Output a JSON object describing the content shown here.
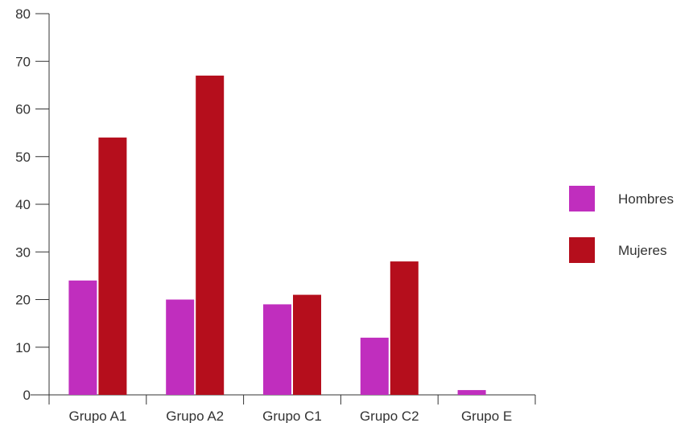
{
  "chart_data": {
    "type": "bar",
    "title": "",
    "xlabel": "",
    "ylabel": "",
    "categories": [
      "Grupo A1",
      "Grupo A2",
      "Grupo C1",
      "Grupo C2",
      "Grupo E"
    ],
    "series": [
      {
        "name": "Hombres",
        "color": "#c02ebe",
        "values": [
          24,
          20,
          19,
          12,
          1
        ]
      },
      {
        "name": "Mujeres",
        "color": "#b50e1c",
        "values": [
          54,
          67,
          21,
          28,
          0
        ]
      }
    ],
    "ylim": [
      0,
      80
    ],
    "yticks": [
      "0",
      "10",
      "20",
      "30",
      "40",
      "50",
      "60",
      "70",
      "80"
    ],
    "grid": false,
    "legend_position": "right"
  }
}
